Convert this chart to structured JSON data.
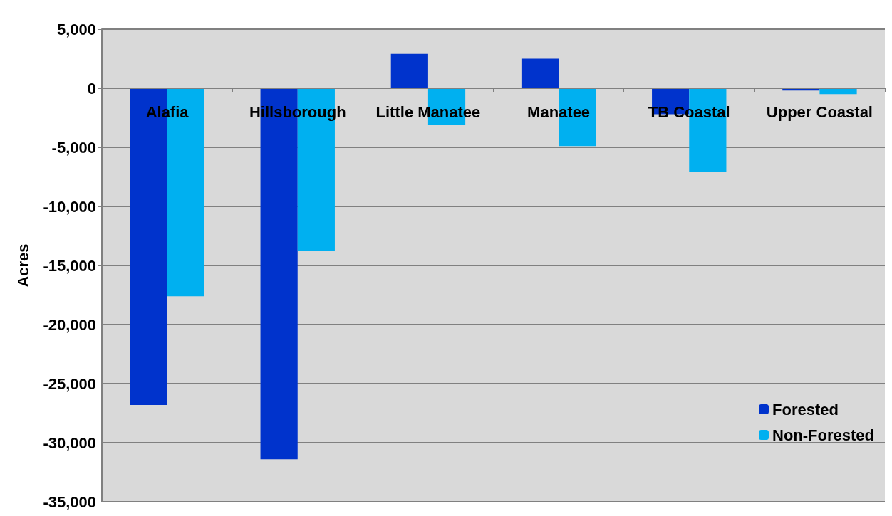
{
  "chart_data": {
    "type": "bar",
    "ylabel": "Acres",
    "categories": [
      "Alafia",
      "Hillsborough",
      "Little Manatee",
      "Manatee",
      "TB Coastal",
      "Upper Coastal"
    ],
    "series": [
      {
        "name": "Forested",
        "color": "#0033cc",
        "values": [
          -26800,
          -31400,
          2900,
          2500,
          -2200,
          -200
        ]
      },
      {
        "name": "Non-Forested",
        "color": "#00b0f0",
        "values": [
          -17600,
          -13800,
          -3100,
          -4900,
          -7100,
          -500
        ]
      }
    ],
    "ylim": [
      -35000,
      5000
    ],
    "yticks": [
      {
        "value": -35000,
        "label": "-35,000"
      },
      {
        "value": -30000,
        "label": "-30,000"
      },
      {
        "value": -25000,
        "label": "-25,000"
      },
      {
        "value": -20000,
        "label": "-20,000"
      },
      {
        "value": -15000,
        "label": "-15,000"
      },
      {
        "value": -10000,
        "label": "-10,000"
      },
      {
        "value": -5000,
        "label": "-5,000"
      },
      0,
      {
        "value": 5000,
        "label": "5,000"
      }
    ],
    "grid": "y",
    "legend": "bottom right"
  }
}
